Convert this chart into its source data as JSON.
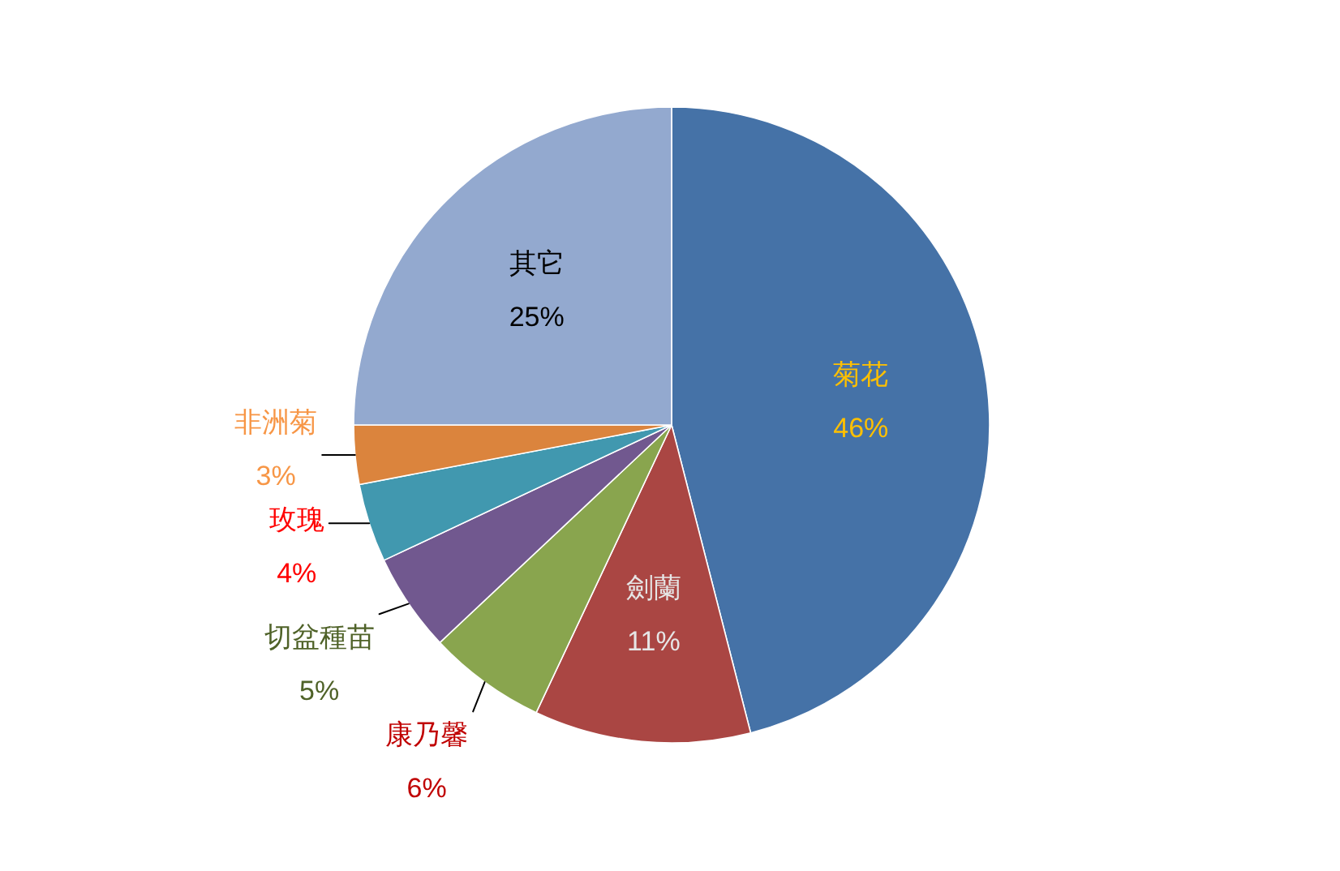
{
  "chart_data": {
    "type": "pie",
    "categories": [
      "菊花",
      "劍蘭",
      "康乃馨",
      "切盆種苗",
      "玫瑰",
      "非洲菊",
      "其它"
    ],
    "values": [
      46,
      11,
      6,
      5,
      4,
      3,
      25
    ],
    "colors": [
      "#4572a7",
      "#aa4643",
      "#89a54e",
      "#71588f",
      "#4198af",
      "#db843d",
      "#93a9cf"
    ],
    "value_labels": [
      "46%",
      "11%",
      "6%",
      "5%",
      "4%",
      "3%",
      "25%"
    ]
  }
}
